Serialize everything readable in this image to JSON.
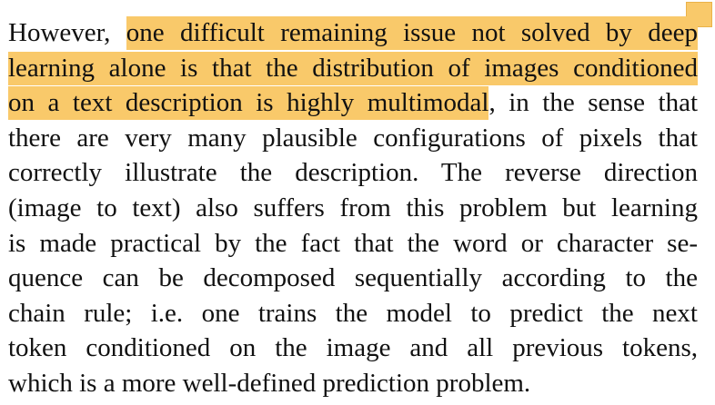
{
  "document": {
    "note_marker_color": "#f9c96a",
    "highlight_color": "#f9c96a",
    "line1": {
      "plain": "However, ",
      "highlight": "one difficult remaining issue not solved by deep"
    },
    "line2": {
      "highlight": "learning alone is that the distribution of images conditioned"
    },
    "line3": {
      "highlight": "on a text description is highly multimodal",
      "plain": ", in the sense that"
    },
    "line4": "there are very many plausible configurations of pixels that",
    "line5": "correctly illustrate the description.  The reverse direction",
    "line6": "(image to text) also suffers from this problem but learning",
    "line7": "is made practical by the fact that the word or character se-",
    "line8": "quence can be decomposed sequentially according to the",
    "line9": "chain rule; i.e.  one trains the model to predict the next",
    "line10": "token conditioned on the image and all previous tokens,",
    "line11": "which is a more well-defined prediction problem."
  }
}
